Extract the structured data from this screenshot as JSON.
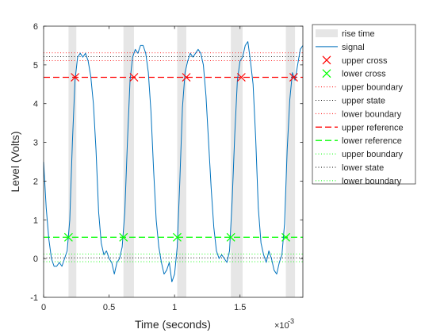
{
  "chart_data": {
    "type": "line",
    "title": "",
    "xlabel": "Time (seconds)",
    "ylabel": "Level (Volts)",
    "x_exponent_label": "×10",
    "x_exponent_power": "-3",
    "xlim": [
      0,
      0.00198
    ],
    "ylim": [
      -1,
      6
    ],
    "xticks": [
      0,
      0.0005,
      0.001,
      0.0015
    ],
    "xtick_labels": [
      "0",
      "0.5",
      "1",
      "1.5"
    ],
    "yticks": [
      -1,
      0,
      1,
      2,
      3,
      4,
      5,
      6
    ],
    "ytick_labels": [
      "-1",
      "0",
      "1",
      "2",
      "3",
      "4",
      "5",
      "6"
    ],
    "grid": false,
    "legend_position": "outside-right",
    "legend": [
      {
        "label": "rise time",
        "style": "patch",
        "color": "#e6e6e6"
      },
      {
        "label": "signal",
        "style": "solid",
        "color": "#0072bd"
      },
      {
        "label": "upper cross",
        "style": "marker-x",
        "color": "#ff0000"
      },
      {
        "label": "lower cross",
        "style": "marker-x",
        "color": "#00ff00"
      },
      {
        "label": "upper boundary",
        "style": "dotted",
        "color": "#ff0000"
      },
      {
        "label": "upper state",
        "style": "dotted",
        "color": "#000000"
      },
      {
        "label": "lower boundary",
        "style": "dotted",
        "color": "#ff0000"
      },
      {
        "label": "upper reference",
        "style": "dashed",
        "color": "#ff0000"
      },
      {
        "label": "lower reference",
        "style": "dashed",
        "color": "#00ff00"
      },
      {
        "label": "upper boundary",
        "style": "dotted",
        "color": "#00ff00"
      },
      {
        "label": "lower state",
        "style": "dotted",
        "color": "#000000"
      },
      {
        "label": "lower boundary",
        "style": "dotted",
        "color": "#00ff00"
      }
    ],
    "rise_time_intervals": [
      [
        0.00019,
        0.00025
      ],
      [
        0.00061,
        0.00069
      ],
      [
        0.00102,
        0.00109
      ],
      [
        0.00143,
        0.00152
      ],
      [
        0.00185,
        0.00192
      ]
    ],
    "upper_cross": [
      [
        0.00024,
        4.68
      ],
      [
        0.00069,
        4.68
      ],
      [
        0.00109,
        4.68
      ],
      [
        0.00151,
        4.68
      ],
      [
        0.00191,
        4.68
      ]
    ],
    "lower_cross": [
      [
        0.00019,
        0.55
      ],
      [
        0.00061,
        0.55
      ],
      [
        0.00102,
        0.55
      ],
      [
        0.00143,
        0.55
      ],
      [
        0.00185,
        0.55
      ]
    ],
    "horizontal_lines": [
      {
        "name": "upper boundary",
        "y": 5.31,
        "style": "dotted",
        "color": "#ff0000"
      },
      {
        "name": "upper state",
        "y": 5.21,
        "style": "dotted",
        "color": "#000000"
      },
      {
        "name": "lower boundary",
        "y": 5.11,
        "style": "dotted",
        "color": "#ff0000"
      },
      {
        "name": "upper reference",
        "y": 4.68,
        "style": "dashed",
        "color": "#ff0000"
      },
      {
        "name": "lower reference",
        "y": 0.55,
        "style": "dashed",
        "color": "#00ff00"
      },
      {
        "name": "upper boundary",
        "y": 0.12,
        "style": "dotted",
        "color": "#00ff00"
      },
      {
        "name": "lower state",
        "y": 0.02,
        "style": "dotted",
        "color": "#000000"
      },
      {
        "name": "lower boundary",
        "y": -0.08,
        "style": "dotted",
        "color": "#00ff00"
      }
    ],
    "series": [
      {
        "name": "signal",
        "color": "#0072bd",
        "x": [
          0,
          2e-05,
          4e-05,
          6e-05,
          8e-05,
          0.0001,
          0.00012,
          0.00014,
          0.00016,
          0.00018,
          0.0002,
          0.00022,
          0.00024,
          0.00026,
          0.00028,
          0.0003,
          0.00032,
          0.00034,
          0.00036,
          0.00038,
          0.0004,
          0.00042,
          0.00044,
          0.00046,
          0.00048,
          0.0005,
          0.00052,
          0.00054,
          0.00056,
          0.00058,
          0.0006,
          0.00062,
          0.00064,
          0.00066,
          0.00068,
          0.0007,
          0.00072,
          0.00074,
          0.00076,
          0.00078,
          0.0008,
          0.00082,
          0.00084,
          0.00086,
          0.00088,
          0.0009,
          0.00092,
          0.00094,
          0.00096,
          0.00098,
          0.001,
          0.00102,
          0.00104,
          0.00106,
          0.00108,
          0.0011,
          0.00112,
          0.00114,
          0.00116,
          0.00118,
          0.0012,
          0.00122,
          0.00124,
          0.00126,
          0.00128,
          0.0013,
          0.00132,
          0.00134,
          0.00136,
          0.00138,
          0.0014,
          0.00142,
          0.00144,
          0.00146,
          0.00148,
          0.0015,
          0.00152,
          0.00154,
          0.00156,
          0.00158,
          0.0016,
          0.00162,
          0.00164,
          0.00166,
          0.00168,
          0.0017,
          0.00172,
          0.00174,
          0.00176,
          0.00178,
          0.0018,
          0.00182,
          0.00184,
          0.00186,
          0.00188,
          0.0019,
          0.00192,
          0.00194,
          0.00196,
          0.00198
        ],
        "y": [
          2.5,
          1.3,
          0.5,
          0.0,
          -0.2,
          -0.2,
          -0.1,
          -0.2,
          0.0,
          0.2,
          1.0,
          3.0,
          4.6,
          5.2,
          5.3,
          5.2,
          5.3,
          5.1,
          4.7,
          4.0,
          2.8,
          1.2,
          0.4,
          0.1,
          0.2,
          0.0,
          -0.1,
          -0.4,
          -0.1,
          0.0,
          0.3,
          1.2,
          3.0,
          4.6,
          5.2,
          5.4,
          5.3,
          5.5,
          5.5,
          5.3,
          4.8,
          3.8,
          2.3,
          1.0,
          0.3,
          -0.1,
          -0.4,
          -0.3,
          -0.1,
          -0.6,
          -0.4,
          0.3,
          2.0,
          3.9,
          4.8,
          5.1,
          5.3,
          5.2,
          5.3,
          5.4,
          5.3,
          5.0,
          4.2,
          3.0,
          1.8,
          0.8,
          0.2,
          0.0,
          0.1,
          0.0,
          -0.1,
          0.2,
          1.5,
          3.2,
          4.6,
          5.1,
          5.2,
          5.5,
          5.6,
          5.1,
          4.5,
          3.1,
          1.3,
          0.4,
          0.1,
          -0.1,
          0.2,
          0.0,
          -0.3,
          -0.4,
          -0.1,
          0.1,
          0.9,
          2.8,
          4.1,
          4.8,
          4.6,
          5.0,
          5.4,
          5.5
        ]
      }
    ]
  }
}
